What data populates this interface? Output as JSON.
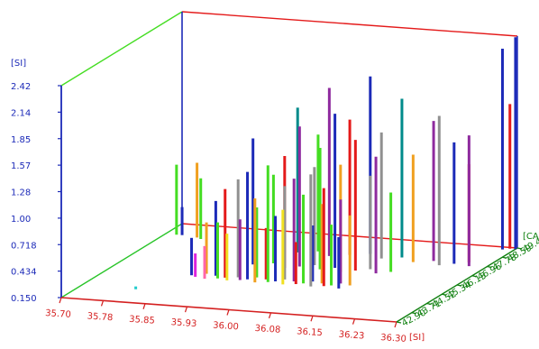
{
  "chart_data": {
    "type": "bar3d",
    "title": "",
    "y_axis": {
      "label": "[SI]",
      "ticks": [
        "0.150",
        "0.434",
        "0.718",
        "1.00",
        "1.28",
        "1.57",
        "1.85",
        "2.14",
        "2.42"
      ],
      "range": [
        0.15,
        2.42
      ]
    },
    "x_axis": {
      "label": "[SI]",
      "ticks": [
        "35.70",
        "35.78",
        "35.85",
        "35.93",
        "36.00",
        "36.08",
        "36.15",
        "36.23",
        "36.30"
      ],
      "range": [
        35.7,
        36.3
      ]
    },
    "z_axis": {
      "label": "[CAO]",
      "ticks": [
        "42.90",
        "43.71",
        "44.52",
        "45.34",
        "46.15",
        "46.96",
        "47.78",
        "48.59",
        "49.40"
      ],
      "range": [
        42.9,
        49.4
      ]
    },
    "colors": {
      "x_axis": "#d42020",
      "y_axis": "#1c2ab8",
      "z_axis": "#108010",
      "back_frame_top": "#e41a1a",
      "back_left_edge": "#44dd22",
      "front_bottom": "#28c428"
    },
    "bars": [
      {
        "x": 35.72,
        "z": 48.5,
        "y": 0.9,
        "color": "#44dd22"
      },
      {
        "x": 35.73,
        "z": 48.5,
        "y": 0.45,
        "color": "#1c2ab8"
      },
      {
        "x": 35.76,
        "z": 48.4,
        "y": 0.95,
        "color": "#f0a020"
      },
      {
        "x": 35.77,
        "z": 48.3,
        "y": 0.8,
        "color": "#44dd22"
      },
      {
        "x": 35.79,
        "z": 44.2,
        "y": 0.12,
        "color": "#22cccc"
      },
      {
        "x": 35.85,
        "z": 45.4,
        "y": 0.55,
        "color": "#1c2ab8"
      },
      {
        "x": 35.86,
        "z": 45.3,
        "y": 0.4,
        "color": "#dd22dd"
      },
      {
        "x": 35.87,
        "z": 45.6,
        "y": 0.7,
        "color": "#f0a020"
      },
      {
        "x": 35.88,
        "z": 45.2,
        "y": 0.5,
        "color": "#ff66aa"
      },
      {
        "x": 35.89,
        "z": 45.5,
        "y": 0.95,
        "color": "#1c2ab8"
      },
      {
        "x": 35.9,
        "z": 45.3,
        "y": 0.75,
        "color": "#44dd22"
      },
      {
        "x": 35.91,
        "z": 45.4,
        "y": 1.1,
        "color": "#e41a1a"
      },
      {
        "x": 35.92,
        "z": 45.2,
        "y": 0.65,
        "color": "#f0e020"
      },
      {
        "x": 35.93,
        "z": 45.5,
        "y": 1.2,
        "color": "#909090"
      },
      {
        "x": 35.94,
        "z": 45.3,
        "y": 0.8,
        "color": "#8e2a9e"
      },
      {
        "x": 35.95,
        "z": 45.4,
        "y": 1.3,
        "color": "#1c2ab8"
      },
      {
        "x": 35.96,
        "z": 45.6,
        "y": 0.9,
        "color": "#44dd22"
      },
      {
        "x": 35.97,
        "z": 45.2,
        "y": 1.05,
        "color": "#f0a020"
      },
      {
        "x": 35.98,
        "z": 45.5,
        "y": 0.7,
        "color": "#e41a1a"
      },
      {
        "x": 35.99,
        "z": 45.3,
        "y": 1.4,
        "color": "#44dd22"
      },
      {
        "x": 36.0,
        "z": 45.4,
        "y": 0.85,
        "color": "#1c2ab8"
      },
      {
        "x": 36.01,
        "z": 45.6,
        "y": 1.15,
        "color": "#909090"
      },
      {
        "x": 36.02,
        "z": 45.2,
        "y": 0.95,
        "color": "#f0e020"
      },
      {
        "x": 36.03,
        "z": 45.5,
        "y": 1.25,
        "color": "#8e2a9e"
      },
      {
        "x": 36.04,
        "z": 45.3,
        "y": 0.6,
        "color": "#e41a1a"
      },
      {
        "x": 36.05,
        "z": 45.4,
        "y": 1.1,
        "color": "#44dd22"
      },
      {
        "x": 36.06,
        "z": 45.6,
        "y": 0.75,
        "color": "#1c2ab8"
      },
      {
        "x": 36.07,
        "z": 45.2,
        "y": 1.35,
        "color": "#909090"
      },
      {
        "x": 36.08,
        "z": 45.5,
        "y": 1.0,
        "color": "#f0a020"
      },
      {
        "x": 36.09,
        "z": 45.3,
        "y": 1.2,
        "color": "#e41a1a"
      },
      {
        "x": 36.1,
        "z": 45.4,
        "y": 0.8,
        "color": "#44dd22"
      },
      {
        "x": 36.11,
        "z": 45.6,
        "y": 1.05,
        "color": "#8e2a9e"
      },
      {
        "x": 36.12,
        "z": 45.2,
        "y": 0.7,
        "color": "#1c2ab8"
      },
      {
        "x": 36.13,
        "z": 45.5,
        "y": 0.9,
        "color": "#f0a020"
      },
      {
        "x": 35.92,
        "z": 46.6,
        "y": 1.5,
        "color": "#1c2ab8"
      },
      {
        "x": 35.95,
        "z": 46.8,
        "y": 1.1,
        "color": "#44dd22"
      },
      {
        "x": 35.98,
        "z": 46.5,
        "y": 1.35,
        "color": "#e41a1a"
      },
      {
        "x": 36.0,
        "z": 46.7,
        "y": 1.65,
        "color": "#8e2a9e"
      },
      {
        "x": 36.02,
        "z": 46.9,
        "y": 1.2,
        "color": "#909090"
      },
      {
        "x": 36.04,
        "z": 46.6,
        "y": 1.45,
        "color": "#44dd22"
      },
      {
        "x": 36.06,
        "z": 46.8,
        "y": 1.8,
        "color": "#1c2ab8"
      },
      {
        "x": 36.08,
        "z": 46.5,
        "y": 1.3,
        "color": "#f0a020"
      },
      {
        "x": 36.1,
        "z": 46.7,
        "y": 1.55,
        "color": "#e41a1a"
      },
      {
        "x": 36.12,
        "z": 46.9,
        "y": 1.15,
        "color": "#909090"
      },
      {
        "x": 36.14,
        "z": 46.6,
        "y": 1.4,
        "color": "#8e2a9e"
      },
      {
        "x": 36.16,
        "z": 46.8,
        "y": 1.0,
        "color": "#44dd22"
      },
      {
        "x": 35.96,
        "z": 47.8,
        "y": 1.7,
        "color": "#008b8b"
      },
      {
        "x": 35.99,
        "z": 48.0,
        "y": 1.4,
        "color": "#44dd22"
      },
      {
        "x": 36.02,
        "z": 47.7,
        "y": 1.95,
        "color": "#8e2a9e"
      },
      {
        "x": 36.05,
        "z": 47.9,
        "y": 1.6,
        "color": "#e41a1a"
      },
      {
        "x": 36.08,
        "z": 48.1,
        "y": 2.05,
        "color": "#1c2ab8"
      },
      {
        "x": 36.11,
        "z": 47.8,
        "y": 1.5,
        "color": "#909090"
      },
      {
        "x": 36.14,
        "z": 48.0,
        "y": 1.85,
        "color": "#008b8b"
      },
      {
        "x": 36.17,
        "z": 47.7,
        "y": 1.3,
        "color": "#f0a020"
      },
      {
        "x": 36.2,
        "z": 47.9,
        "y": 1.65,
        "color": "#8e2a9e"
      },
      {
        "x": 36.22,
        "z": 47.6,
        "y": 1.75,
        "color": "#909090"
      },
      {
        "x": 36.24,
        "z": 47.8,
        "y": 1.45,
        "color": "#1c2ab8"
      },
      {
        "x": 36.26,
        "z": 48.0,
        "y": 1.2,
        "color": "#e41a1a"
      },
      {
        "x": 36.27,
        "z": 47.7,
        "y": 1.55,
        "color": "#8e2a9e"
      },
      {
        "x": 36.28,
        "z": 49.2,
        "y": 2.3,
        "color": "#1c2ab8"
      },
      {
        "x": 36.29,
        "z": 49.3,
        "y": 1.7,
        "color": "#e41a1a"
      },
      {
        "x": 36.3,
        "z": 49.3,
        "y": 2.42,
        "color": "#1c2ab8"
      }
    ]
  }
}
